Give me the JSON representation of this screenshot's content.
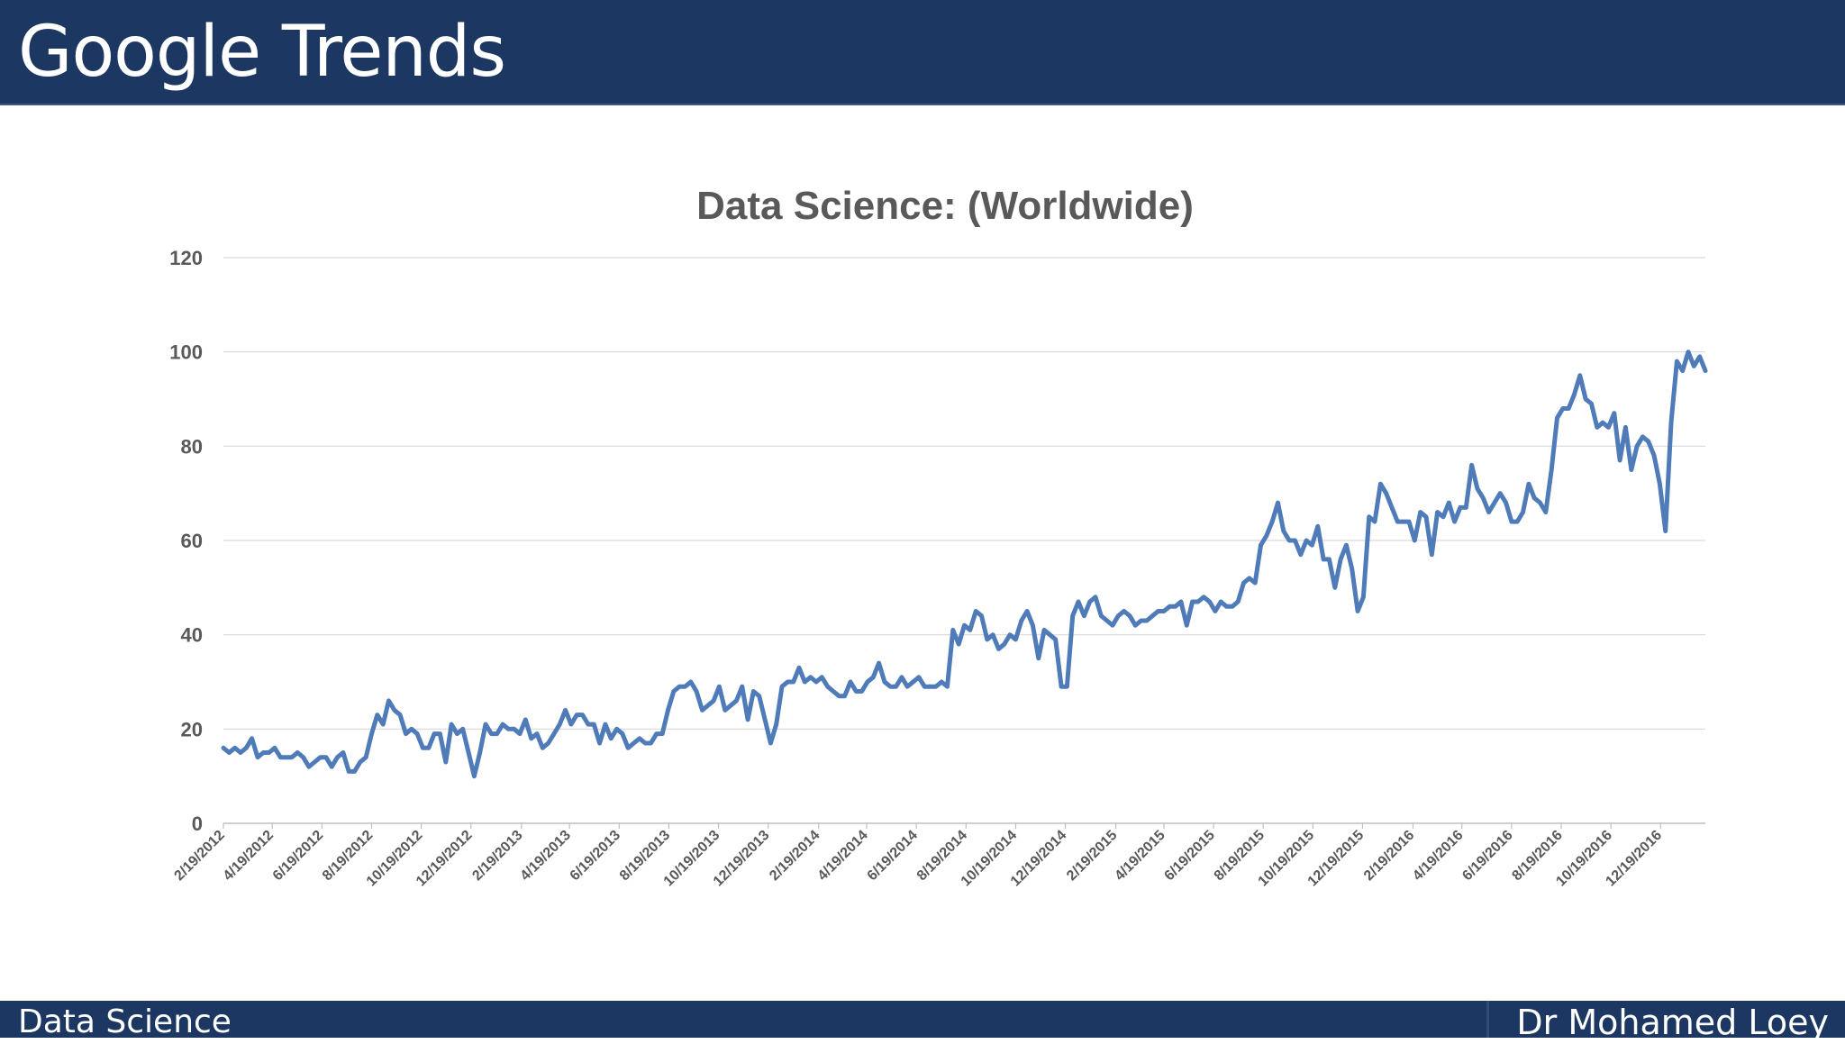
{
  "slide": {
    "title": "Google Trends",
    "footer_left": "Data Science",
    "footer_right": "Dr Mohamed Loey"
  },
  "colors": {
    "header_bg": "#1d3763",
    "line": "#4f7bb9",
    "grid": "#d9d9d9",
    "text": "#595959"
  },
  "chart_data": {
    "type": "line",
    "title": "Data Science: (Worldwide)",
    "xlabel": "",
    "ylabel": "",
    "ylim": [
      0,
      120
    ],
    "yticks": [
      0,
      20,
      40,
      60,
      80,
      100,
      120
    ],
    "grid": true,
    "x_tick_labels": [
      "2/19/2012",
      "4/19/2012",
      "6/19/2012",
      "8/19/2012",
      "10/19/2012",
      "12/19/2012",
      "2/19/2013",
      "4/19/2013",
      "6/19/2013",
      "8/19/2013",
      "10/19/2013",
      "12/19/2013",
      "2/19/2014",
      "4/19/2014",
      "6/19/2014",
      "8/19/2014",
      "10/19/2014",
      "12/19/2014",
      "2/19/2015",
      "4/19/2015",
      "6/19/2015",
      "8/19/2015",
      "10/19/2015",
      "12/19/2015",
      "2/19/2016",
      "4/19/2016",
      "6/19/2016",
      "8/19/2016",
      "10/19/2016",
      "12/19/2016"
    ],
    "x_start": "2/19/2012",
    "interval_days": 7,
    "series": [
      {
        "values": [
          16,
          15,
          16,
          15,
          16,
          18,
          14,
          15,
          15,
          16,
          14,
          14,
          14,
          15,
          14,
          12,
          13,
          14,
          14,
          12,
          14,
          15,
          11,
          11,
          13,
          14,
          19,
          23,
          21,
          26,
          24,
          23,
          19,
          20,
          19,
          16,
          16,
          19,
          19,
          13,
          21,
          19,
          20,
          15,
          10,
          15,
          21,
          19,
          19,
          21,
          20,
          20,
          19,
          22,
          18,
          19,
          16,
          17,
          19,
          21,
          24,
          21,
          23,
          23,
          21,
          21,
          17,
          21,
          18,
          20,
          19,
          16,
          17,
          18,
          17,
          17,
          19,
          19,
          24,
          28,
          29,
          29,
          30,
          28,
          24,
          25,
          26,
          29,
          24,
          25,
          26,
          29,
          22,
          28,
          27,
          22,
          17,
          21,
          29,
          30,
          30,
          33,
          30,
          31,
          30,
          31,
          29,
          28,
          27,
          27,
          30,
          28,
          28,
          30,
          31,
          34,
          30,
          29,
          29,
          31,
          29,
          30,
          31,
          29,
          29,
          29,
          30,
          29,
          41,
          38,
          42,
          41,
          45,
          44,
          39,
          40,
          37,
          38,
          40,
          39,
          43,
          45,
          42,
          35,
          41,
          40,
          39,
          29,
          29,
          44,
          47,
          44,
          47,
          48,
          44,
          43,
          42,
          44,
          45,
          44,
          42,
          43,
          43,
          44,
          45,
          45,
          46,
          46,
          47,
          42,
          47,
          47,
          48,
          47,
          45,
          47,
          46,
          46,
          47,
          51,
          52,
          51,
          59,
          61,
          64,
          68,
          62,
          60,
          60,
          57,
          60,
          59,
          63,
          56,
          56,
          50,
          56,
          59,
          54,
          45,
          48,
          65,
          64,
          72,
          70,
          67,
          64,
          64,
          64,
          60,
          66,
          65,
          57,
          66,
          65,
          68,
          64,
          67,
          67,
          76,
          71,
          69,
          66,
          68,
          70,
          68,
          64,
          64,
          66,
          72,
          69,
          68,
          66,
          75,
          86,
          88,
          88,
          91,
          95,
          90,
          89,
          84,
          85,
          84,
          87,
          77,
          84,
          75,
          80,
          82,
          81,
          78,
          72,
          62,
          85,
          98,
          96,
          100,
          97,
          99,
          96
        ]
      }
    ]
  }
}
